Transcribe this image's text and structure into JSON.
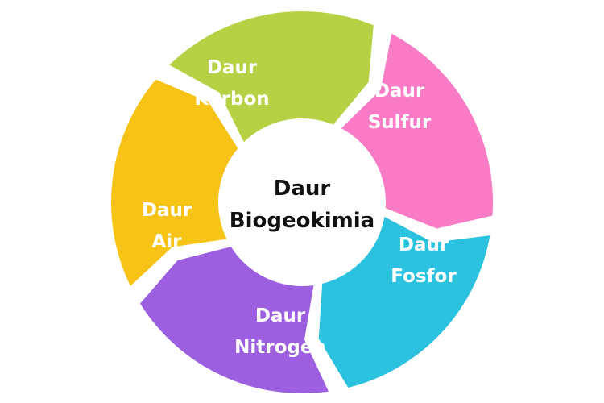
{
  "center": {
    "line1": "Daur",
    "line2": "Biogeokimia"
  },
  "segments": [
    {
      "line1": "Daur",
      "line2": "Karbon",
      "color": "#9b5fe0"
    },
    {
      "line1": "Daur",
      "line2": "Sulfur",
      "color": "#f7c316"
    },
    {
      "line1": "Daur",
      "line2": "Fosfor",
      "color": "#b6d144"
    },
    {
      "line1": "Daur",
      "line2": "Nitrogen",
      "color": "#f97bc5"
    },
    {
      "line1": "Daur",
      "line2": "Air",
      "color": "#2ac2de"
    }
  ]
}
